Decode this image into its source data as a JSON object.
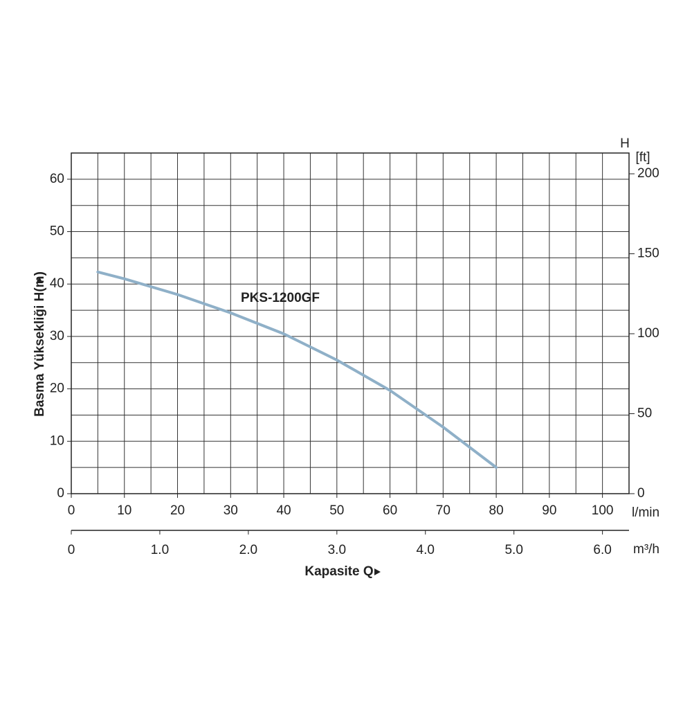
{
  "chart_data": {
    "type": "line",
    "x": [
      5,
      10,
      20,
      30,
      40,
      50,
      60,
      70,
      80
    ],
    "series": [
      {
        "name": "PKS-1200GF",
        "color": "#8fb0c8",
        "label_color": "#2a8787",
        "values": [
          42.3,
          41,
          38,
          34.5,
          30.5,
          25.5,
          19.7,
          12.7,
          5
        ]
      }
    ],
    "xlim": [
      0,
      105
    ],
    "xticks": [
      0,
      10,
      20,
      30,
      40,
      50,
      60,
      70,
      80,
      90,
      100
    ],
    "ylim": [
      0,
      65
    ],
    "yticks": [
      0,
      10,
      20,
      30,
      40,
      50,
      60
    ],
    "y2lim": [
      0,
      213
    ],
    "y2ticks": [
      0,
      50,
      100,
      150,
      200
    ],
    "x2lim": [
      0,
      6.3
    ],
    "x2ticks": [
      0,
      {
        "value": 1,
        "label": "1.0"
      },
      {
        "value": 2,
        "label": "2.0"
      },
      {
        "value": 3,
        "label": "3.0"
      },
      {
        "value": 4,
        "label": "4.0"
      },
      {
        "value": 5,
        "label": "5.0"
      },
      {
        "value": 6,
        "label": "6.0"
      }
    ],
    "y_label": "Basma Yüksekliği H(m)",
    "y2_label_top": "H",
    "y2_unit": "[ft]",
    "x_unit": "l/min",
    "x2_unit": "m³/h",
    "x_label": "Kapasite Q",
    "grid": true
  }
}
